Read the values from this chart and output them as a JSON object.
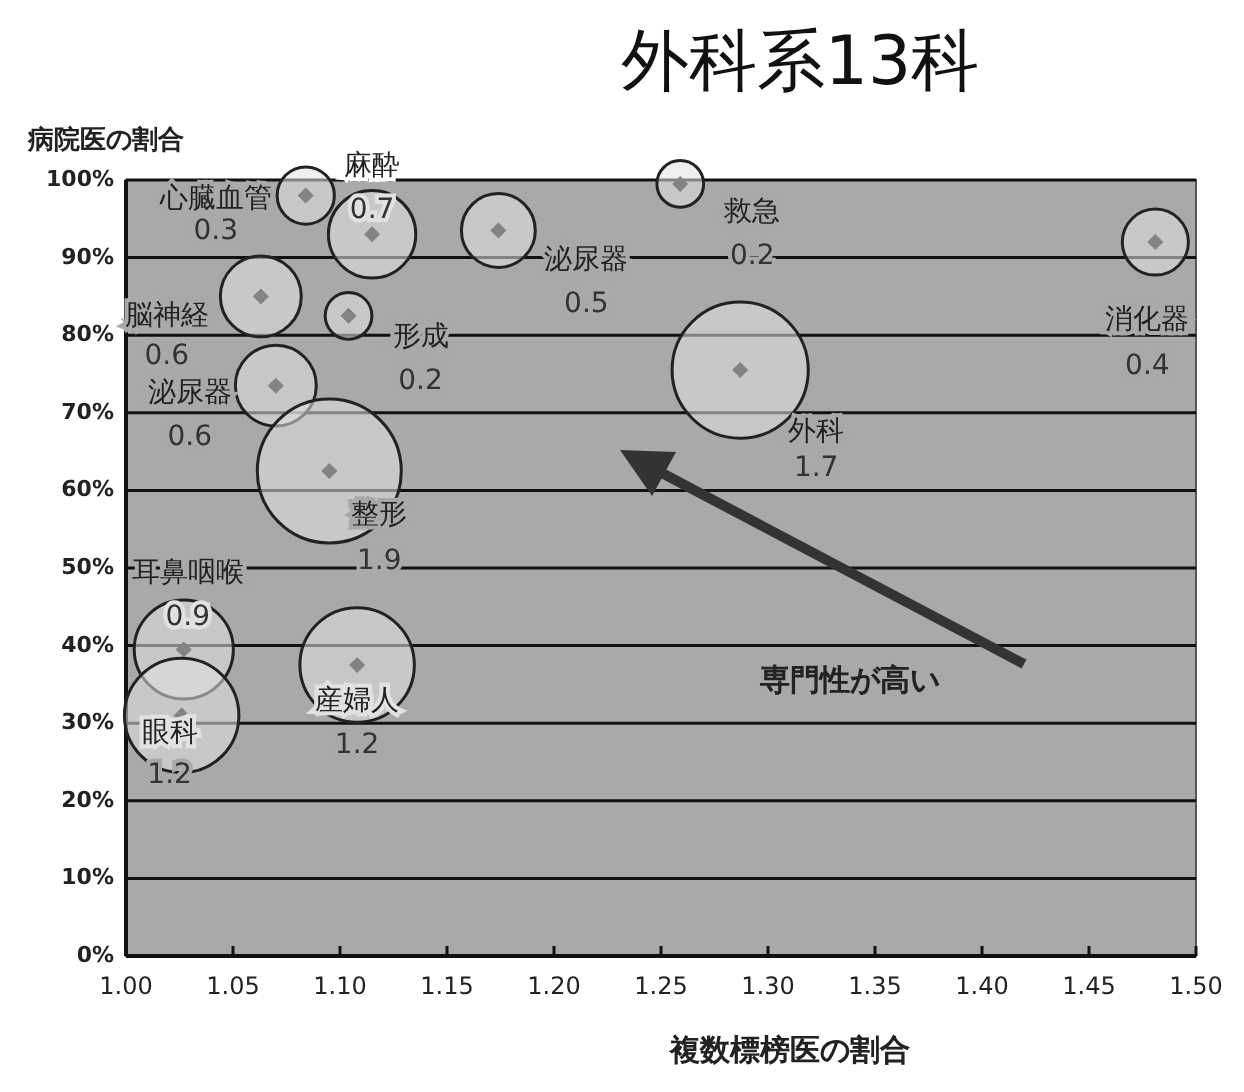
{
  "chart_data": {
    "type": "bubble",
    "title": "外科系13科",
    "xlabel": "複数標榜医の割合",
    "ylabel": "病院医の割合",
    "xlim": [
      1.0,
      1.5
    ],
    "xticks": [
      {
        "value": 1.0,
        "label": "1.00"
      },
      {
        "value": 1.05,
        "label": "1.05"
      },
      {
        "value": 1.1,
        "label": "1.10"
      },
      {
        "value": 1.15,
        "label": "1.15"
      },
      {
        "value": 1.2,
        "label": "1.20"
      },
      {
        "value": 1.25,
        "label": "1.25"
      },
      {
        "value": 1.3,
        "label": "1.30"
      },
      {
        "value": 1.35,
        "label": "1.35"
      },
      {
        "value": 1.4,
        "label": "1.40"
      },
      {
        "value": 1.45,
        "label": "1.45"
      },
      {
        "value": 1.5,
        "label": "1.50"
      }
    ],
    "ylim": [
      0,
      100
    ],
    "yticks": [
      {
        "value": 0,
        "label": "0%"
      },
      {
        "value": 10,
        "label": "10%"
      },
      {
        "value": 20,
        "label": "20%"
      },
      {
        "value": 30,
        "label": "30%"
      },
      {
        "value": 40,
        "label": "40%"
      },
      {
        "value": 50,
        "label": "50%"
      },
      {
        "value": 60,
        "label": "60%"
      },
      {
        "value": 70,
        "label": "70%"
      },
      {
        "value": 80,
        "label": "80%"
      },
      {
        "value": 90,
        "label": "90%"
      },
      {
        "value": 100,
        "label": "100%"
      }
    ],
    "grid": "y",
    "legend": false,
    "series": [
      {
        "name": "心臓血管",
        "color": "#e2e2e2",
        "x": [
          1.084
        ],
        "values": [
          98
        ],
        "sizes": [
          0.3
        ],
        "value_labels": [
          "0.3"
        ]
      },
      {
        "name": "麻酔",
        "color": "#e2e2e2",
        "x": [
          1.115
        ],
        "values": [
          93
        ],
        "sizes": [
          0.7
        ],
        "value_labels": [
          "0.7"
        ]
      },
      {
        "name": "泌尿器",
        "color": "#e2e2e2",
        "x": [
          1.174
        ],
        "values": [
          93.5
        ],
        "sizes": [
          0.5
        ],
        "value_labels": [
          "0.5"
        ]
      },
      {
        "name": "救急",
        "color": "#e2e2e2",
        "x": [
          1.259
        ],
        "values": [
          99.5
        ],
        "sizes": [
          0.2
        ],
        "value_labels": [
          "0.2"
        ]
      },
      {
        "name": "消化器",
        "color": "#e2e2e2",
        "x": [
          1.481
        ],
        "values": [
          92
        ],
        "sizes": [
          0.4
        ],
        "value_labels": [
          "0.4"
        ]
      },
      {
        "name": "脳神経",
        "color": "#e2e2e2",
        "x": [
          1.063
        ],
        "values": [
          85
        ],
        "sizes": [
          0.6
        ],
        "value_labels": [
          "0.6"
        ]
      },
      {
        "name": "形成",
        "color": "#e2e2e2",
        "x": [
          1.104
        ],
        "values": [
          82.5
        ],
        "sizes": [
          0.2
        ],
        "value_labels": [
          "0.2"
        ]
      },
      {
        "name": "泌尿器",
        "color": "#e2e2e2",
        "x": [
          1.07
        ],
        "values": [
          73.5
        ],
        "sizes": [
          0.6
        ],
        "value_labels": [
          "0.6"
        ]
      },
      {
        "name": "外科",
        "color": "#e2e2e2",
        "x": [
          1.287
        ],
        "values": [
          75.5
        ],
        "sizes": [
          1.7
        ],
        "value_labels": [
          "1.7"
        ]
      },
      {
        "name": "整形",
        "color": "#e2e2e2",
        "x": [
          1.095
        ],
        "values": [
          62.5
        ],
        "sizes": [
          1.9
        ],
        "value_labels": [
          "1.9"
        ]
      },
      {
        "name": "耳鼻咽喉",
        "color": "#e2e2e2",
        "x": [
          1.027
        ],
        "values": [
          39.5
        ],
        "sizes": [
          0.9
        ],
        "value_labels": [
          "0.9"
        ]
      },
      {
        "name": "産婦人",
        "color": "#e2e2e2",
        "x": [
          1.108
        ],
        "values": [
          37.5
        ],
        "sizes": [
          1.2
        ],
        "value_labels": [
          "1.2"
        ]
      },
      {
        "name": "眼科",
        "color": "#e2e2e2",
        "x": [
          1.026
        ],
        "values": [
          31
        ],
        "sizes": [
          1.2
        ],
        "value_labels": [
          "1.2"
        ]
      }
    ],
    "annotations": [
      "専門性が高い"
    ]
  }
}
